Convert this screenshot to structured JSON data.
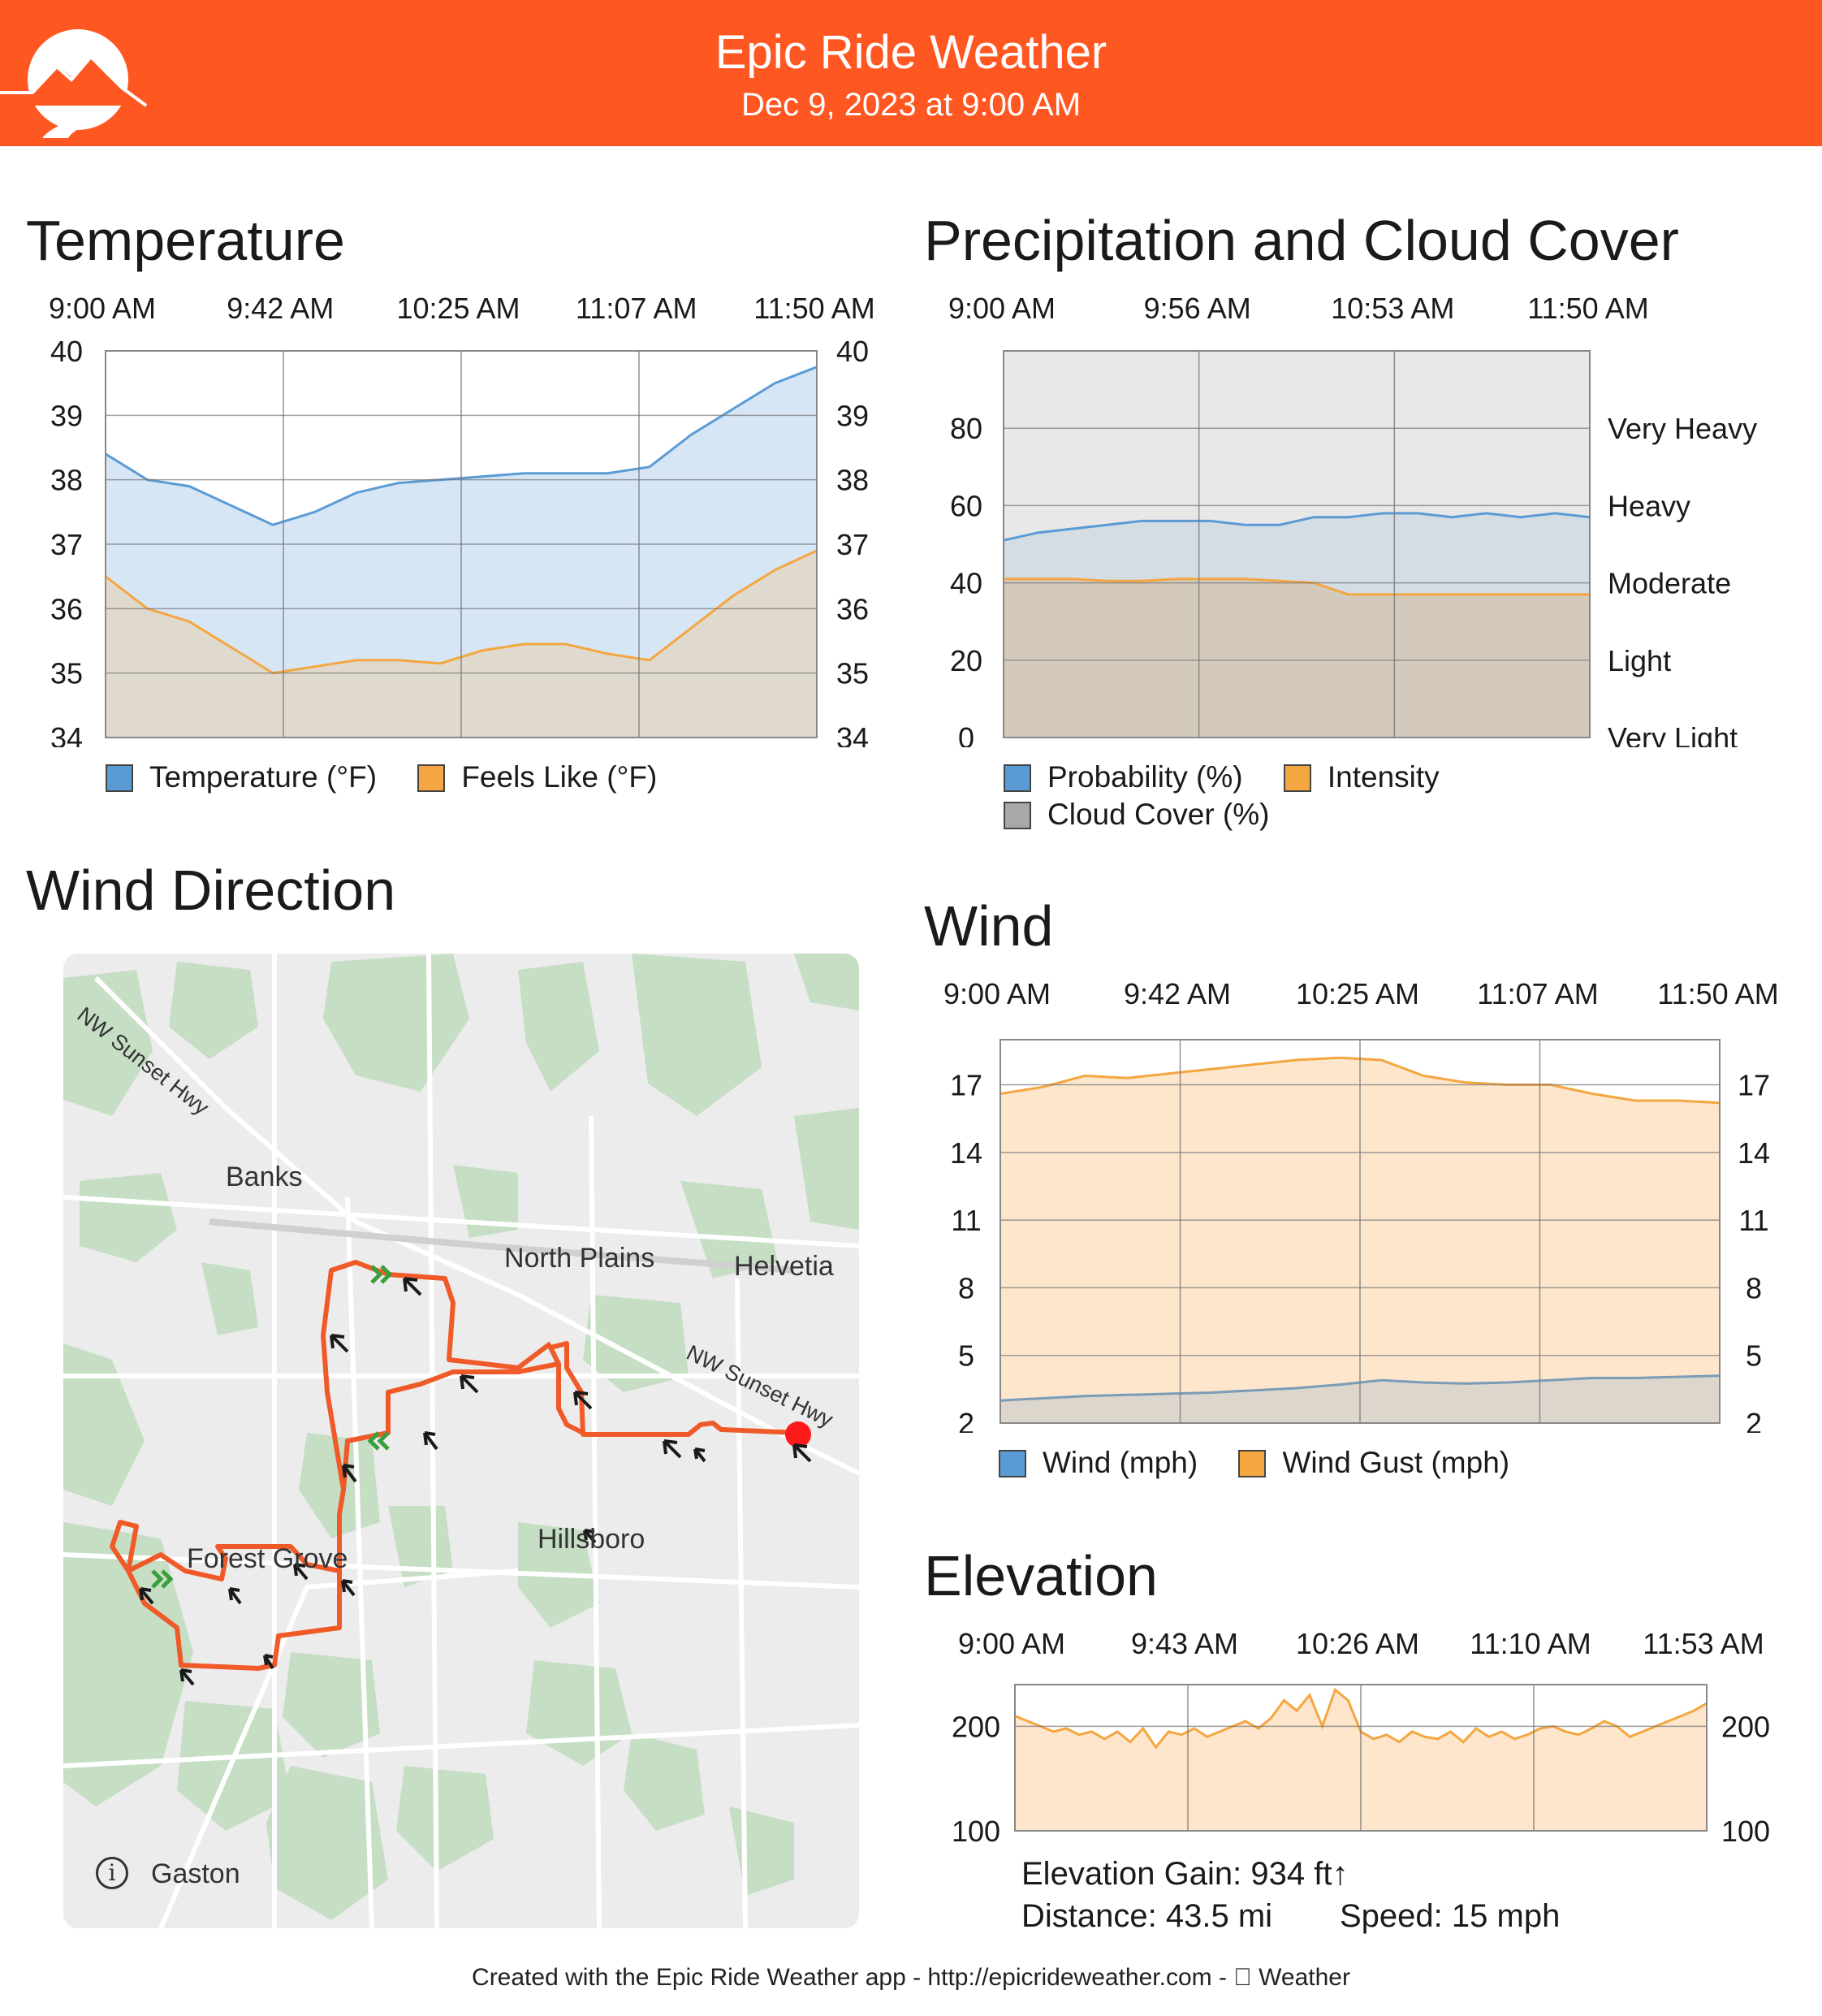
{
  "header": {
    "app_name": "Epic Ride Weather",
    "datetime": "Dec 9, 2023 at 9:00 AM",
    "brand_color": "#ff5722",
    "logo_icon": "mountain-road-logo"
  },
  "temperature": {
    "title": "Temperature",
    "times": [
      "9:00 AM",
      "9:42 AM",
      "10:25 AM",
      "11:07 AM",
      "11:50 AM"
    ],
    "legend": [
      "Temperature (°F)",
      "Feels Like (°F)"
    ],
    "chart_data": {
      "type": "area",
      "ylim": [
        34,
        40
      ],
      "yticks": [
        "34",
        "35",
        "36",
        "37",
        "38",
        "39",
        "40"
      ],
      "series": [
        {
          "name": "Temperature (°F)",
          "color": "#5b9bd5",
          "values": [
            38.4,
            38.0,
            37.9,
            37.6,
            37.3,
            37.5,
            37.8,
            37.95,
            38.0,
            38.05,
            38.1,
            38.1,
            38.1,
            38.2,
            38.7,
            39.1,
            39.5,
            39.75
          ]
        },
        {
          "name": "Feels Like (°F)",
          "color": "#f4a640",
          "values": [
            36.5,
            36.0,
            35.8,
            35.4,
            35.0,
            35.1,
            35.2,
            35.2,
            35.15,
            35.35,
            35.45,
            35.45,
            35.3,
            35.2,
            35.7,
            36.2,
            36.6,
            36.9
          ]
        }
      ]
    }
  },
  "precipitation": {
    "title": "Precipitation and Cloud Cover",
    "times": [
      "9:00 AM",
      "9:56 AM",
      "10:53 AM",
      "11:50 AM"
    ],
    "right_labels": [
      "Very Heavy",
      "Heavy",
      "Moderate",
      "Light",
      "Very Light"
    ],
    "legend": [
      "Probability (%)",
      "Intensity",
      "Cloud Cover (%)"
    ],
    "chart_data": {
      "type": "area",
      "ylim": [
        0,
        100
      ],
      "yticks": [
        "0",
        "20",
        "40",
        "60",
        "80"
      ],
      "series": [
        {
          "name": "Cloud Cover (%)",
          "color": "#9e9e9e",
          "values": [
            100,
            100,
            100,
            100,
            100,
            100,
            100,
            100,
            100,
            100,
            100,
            100,
            100,
            100,
            100,
            100,
            100,
            100
          ]
        },
        {
          "name": "Probability (%)",
          "color": "#5b9bd5",
          "values": [
            51,
            53,
            54,
            55,
            56,
            56,
            56,
            55,
            55,
            57,
            57,
            58,
            58,
            57,
            58,
            57,
            58,
            57
          ]
        },
        {
          "name": "Intensity",
          "color": "#f4a640",
          "values": [
            41,
            41,
            41,
            40.5,
            40.5,
            41,
            41,
            41,
            40.5,
            40,
            37,
            37,
            37,
            37,
            37,
            37,
            37,
            37
          ]
        }
      ]
    }
  },
  "wind_direction": {
    "title": "Wind Direction",
    "places": [
      "Banks",
      "North Plains",
      "Helvetia",
      "Hillsboro",
      "Forest Grove",
      "Gaston"
    ],
    "roads": [
      "NW Sunset Hwy",
      "NW Sunset Hwy"
    ],
    "info_icon": "info-icon",
    "route_color": "#f05a28",
    "arrow_icon": "wind-arrow-icon",
    "start_marker_color": "#ff1a1a"
  },
  "wind": {
    "title": "Wind",
    "times": [
      "9:00 AM",
      "9:42 AM",
      "10:25 AM",
      "11:07 AM",
      "11:50 AM"
    ],
    "legend": [
      "Wind (mph)",
      "Wind Gust (mph)"
    ],
    "chart_data": {
      "type": "area",
      "ylim": [
        2,
        19
      ],
      "yticks": [
        "2",
        "5",
        "8",
        "11",
        "14",
        "17"
      ],
      "series": [
        {
          "name": "Wind Gust (mph)",
          "color": "#f4a640",
          "values": [
            16.6,
            16.9,
            17.4,
            17.3,
            17.5,
            17.7,
            17.9,
            18.1,
            18.2,
            18.1,
            17.4,
            17.1,
            17.0,
            17.0,
            16.6,
            16.3,
            16.3,
            16.2
          ]
        },
        {
          "name": "Wind (mph)",
          "color": "#5b9bd5",
          "values": [
            3.0,
            3.1,
            3.2,
            3.25,
            3.3,
            3.35,
            3.45,
            3.55,
            3.7,
            3.9,
            3.8,
            3.75,
            3.8,
            3.9,
            4.0,
            4.0,
            4.05,
            4.1
          ]
        }
      ]
    }
  },
  "elevation": {
    "title": "Elevation",
    "times": [
      "9:00 AM",
      "9:43 AM",
      "10:26 AM",
      "11:10 AM",
      "11:53 AM"
    ],
    "gain_label": "Elevation Gain: 934 ft↑",
    "distance_label": "Distance: 43.5 mi",
    "speed_label": "Speed: 15 mph",
    "chart_data": {
      "type": "area",
      "ylim": [
        100,
        240
      ],
      "yticks": [
        "100",
        "200"
      ],
      "series": [
        {
          "name": "Elevation",
          "color": "#f4a640",
          "values": [
            210,
            205,
            200,
            195,
            198,
            192,
            195,
            188,
            195,
            185,
            198,
            180,
            195,
            192,
            198,
            190,
            195,
            200,
            205,
            198,
            208,
            225,
            215,
            230,
            200,
            235,
            225,
            195,
            188,
            192,
            185,
            195,
            190,
            188,
            195,
            185,
            198,
            190,
            195,
            188,
            192,
            198,
            200,
            195,
            192,
            198,
            205,
            200,
            190,
            195,
            200,
            205,
            210,
            215,
            222
          ]
        }
      ]
    }
  },
  "footer": {
    "text": "Created with the Epic Ride Weather app - http://epicrideweather.com -  Weather"
  }
}
